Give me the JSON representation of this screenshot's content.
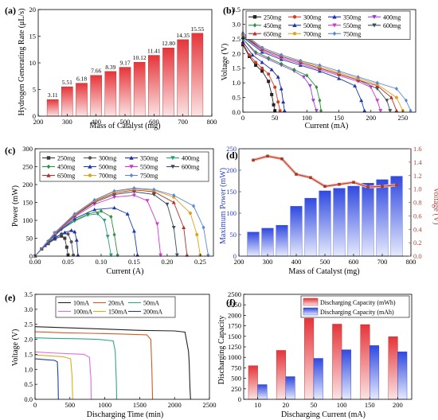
{
  "panels": [
    {
      "id": "a",
      "label": "(a)",
      "type": "bar",
      "xlabel": "Mass of Catalyst (mg)",
      "ylabel": "Hydrogen Generating Rate (μL/s)",
      "xlim": [
        200,
        800
      ],
      "ylim": [
        0,
        20
      ],
      "xticks": [
        200,
        300,
        400,
        500,
        600,
        700,
        800
      ],
      "yticks": [
        0,
        5,
        10,
        15,
        20
      ],
      "bar_color": "#e8474a",
      "x": [
        250,
        300,
        350,
        400,
        450,
        500,
        550,
        600,
        650,
        700,
        750
      ],
      "values": [
        3.11,
        5.51,
        6.18,
        7.66,
        8.39,
        9.17,
        10.12,
        11.41,
        12.8,
        14.35,
        15.55
      ],
      "value_labels": [
        "3.11",
        "5.51",
        "6.18",
        "7.66",
        "8.39",
        "9.17",
        "10.12",
        "11.41",
        "12.80",
        "14.35",
        "15.55"
      ]
    },
    {
      "id": "b",
      "label": "(b)",
      "type": "line",
      "xlabel": "Current (mA)",
      "ylabel": "Voltage (V)",
      "xlim": [
        0,
        270
      ],
      "ylim": [
        0,
        3.5
      ],
      "xticks": [
        0,
        50,
        100,
        150,
        200,
        250
      ],
      "yticks": [
        0.0,
        0.5,
        1.0,
        1.5,
        2.0,
        2.5,
        3.0,
        3.5
      ],
      "ytick_labels": [
        "0.0",
        "0.5",
        "1.0",
        "1.5",
        "2.0",
        "2.5",
        "3.0",
        "3.5"
      ],
      "legend": "top",
      "legend_cols": 4,
      "series": [
        {
          "name": "250mg",
          "color": "#222222",
          "marker": "square",
          "x": [
            0,
            10,
            20,
            30,
            40,
            45,
            48,
            50
          ],
          "y": [
            2.3,
            1.9,
            1.6,
            1.4,
            1.05,
            0.6,
            0.25,
            0.05
          ]
        },
        {
          "name": "300mg",
          "color": "#d43a24",
          "marker": "circle",
          "x": [
            0,
            10,
            20,
            30,
            40,
            50,
            55,
            58
          ],
          "y": [
            2.35,
            1.95,
            1.7,
            1.5,
            1.3,
            0.85,
            0.35,
            0.05
          ]
        },
        {
          "name": "350mg",
          "color": "#1f2fa6",
          "marker": "triangle",
          "x": [
            0,
            15,
            30,
            45,
            55,
            60,
            63,
            65
          ],
          "y": [
            2.4,
            1.95,
            1.7,
            1.45,
            1.2,
            0.8,
            0.35,
            0.05
          ]
        },
        {
          "name": "400mg",
          "color": "#9b3fd6",
          "marker": "tridown",
          "x": [
            0,
            20,
            40,
            60,
            80,
            95,
            105,
            110,
            115
          ],
          "y": [
            2.5,
            2.0,
            1.8,
            1.6,
            1.4,
            1.2,
            0.9,
            0.4,
            0.05
          ]
        },
        {
          "name": "450mg",
          "color": "#2e8f3c",
          "marker": "diamond",
          "x": [
            0,
            20,
            40,
            60,
            80,
            100,
            115,
            120,
            122
          ],
          "y": [
            2.5,
            2.05,
            1.85,
            1.65,
            1.45,
            1.25,
            0.85,
            0.4,
            0.05
          ]
        },
        {
          "name": "500mg",
          "color": "#1c3da8",
          "marker": "triangle",
          "x": [
            0,
            30,
            60,
            90,
            120,
            150,
            175,
            185,
            190
          ],
          "y": [
            2.55,
            2.05,
            1.8,
            1.6,
            1.4,
            1.15,
            0.9,
            0.4,
            0.05
          ]
        },
        {
          "name": "550mg",
          "color": "#c93bd1",
          "marker": "tridown",
          "x": [
            0,
            30,
            60,
            90,
            120,
            150,
            180,
            200,
            210,
            215
          ],
          "y": [
            2.6,
            2.1,
            1.85,
            1.65,
            1.45,
            1.25,
            1.05,
            0.85,
            0.4,
            0.05
          ]
        },
        {
          "name": "600mg",
          "color": "#3a4f5a",
          "marker": "tridown",
          "x": [
            0,
            30,
            60,
            90,
            120,
            150,
            180,
            210,
            225,
            230
          ],
          "y": [
            2.6,
            2.15,
            1.9,
            1.7,
            1.5,
            1.3,
            1.1,
            0.8,
            0.4,
            0.05
          ]
        },
        {
          "name": "650mg",
          "color": "#b3322e",
          "marker": "triangle",
          "x": [
            0,
            30,
            60,
            90,
            120,
            150,
            180,
            210,
            232,
            240
          ],
          "y": [
            2.65,
            2.15,
            1.9,
            1.7,
            1.5,
            1.3,
            1.1,
            0.9,
            0.5,
            0.05
          ]
        },
        {
          "name": "700mg",
          "color": "#e0a31c",
          "marker": "circle",
          "x": [
            0,
            30,
            60,
            90,
            120,
            150,
            180,
            210,
            240,
            250
          ],
          "y": [
            2.65,
            2.2,
            1.95,
            1.75,
            1.55,
            1.35,
            1.15,
            0.95,
            0.5,
            0.05
          ]
        },
        {
          "name": "750mg",
          "color": "#5c86d6",
          "marker": "diamond",
          "x": [
            0,
            30,
            60,
            90,
            120,
            150,
            180,
            210,
            240,
            255,
            262
          ],
          "y": [
            2.7,
            2.2,
            1.95,
            1.75,
            1.6,
            1.4,
            1.2,
            1.0,
            0.8,
            0.4,
            0.05
          ]
        }
      ]
    },
    {
      "id": "c",
      "label": "(c)",
      "type": "line",
      "xlabel": "Current (A)",
      "ylabel": "Power (mW)",
      "xlim": [
        0,
        0.27
      ],
      "ylim": [
        0,
        300
      ],
      "xticks": [
        0,
        0.05,
        0.1,
        0.15,
        0.2,
        0.25
      ],
      "xtick_labels": [
        "0.00",
        "0.05",
        "0.10",
        "0.15",
        "0.20",
        "0.25"
      ],
      "yticks": [
        0,
        50,
        100,
        150,
        200,
        250,
        300
      ],
      "legend": "top",
      "legend_cols": 4,
      "series": [
        {
          "name": "250mg",
          "color": "#3a3a3a",
          "marker": "square",
          "x": [
            0,
            0.01,
            0.02,
            0.03,
            0.04,
            0.045,
            0.048,
            0.05
          ],
          "y": [
            0,
            20,
            35,
            48,
            56,
            50,
            25,
            3
          ]
        },
        {
          "name": "300mg",
          "color": "#555555",
          "marker": "circle",
          "x": [
            0,
            0.01,
            0.02,
            0.03,
            0.04,
            0.05,
            0.055,
            0.058
          ],
          "y": [
            0,
            20,
            36,
            50,
            62,
            62,
            40,
            3
          ]
        },
        {
          "name": "350mg",
          "color": "#1f2fa6",
          "marker": "triangle",
          "x": [
            0,
            0.015,
            0.03,
            0.045,
            0.055,
            0.06,
            0.063,
            0.065
          ],
          "y": [
            0,
            30,
            52,
            66,
            72,
            68,
            45,
            3
          ]
        },
        {
          "name": "400mg",
          "color": "#2a9d7a",
          "marker": "tridown",
          "x": [
            0,
            0.02,
            0.04,
            0.06,
            0.08,
            0.095,
            0.105,
            0.11,
            0.115
          ],
          "y": [
            0,
            40,
            74,
            98,
            115,
            118,
            100,
            55,
            3
          ]
        },
        {
          "name": "450mg",
          "color": "#2e8f3c",
          "marker": "diamond",
          "x": [
            0,
            0.02,
            0.04,
            0.06,
            0.08,
            0.1,
            0.115,
            0.12,
            0.125
          ],
          "y": [
            0,
            42,
            76,
            100,
            118,
            126,
            110,
            60,
            3
          ]
        },
        {
          "name": "500mg",
          "color": "#1c3da8",
          "marker": "triangle",
          "x": [
            0,
            0.03,
            0.06,
            0.09,
            0.12,
            0.14,
            0.15,
            0.155
          ],
          "y": [
            0,
            60,
            105,
            130,
            135,
            118,
            70,
            3
          ]
        },
        {
          "name": "550mg",
          "color": "#c93bd1",
          "marker": "tridown",
          "x": [
            0,
            0.03,
            0.06,
            0.09,
            0.12,
            0.15,
            0.17,
            0.185,
            0.19
          ],
          "y": [
            0,
            62,
            110,
            145,
            165,
            170,
            155,
            90,
            3
          ]
        },
        {
          "name": "600mg",
          "color": "#3a4f5a",
          "marker": "tridown",
          "x": [
            0,
            0.03,
            0.06,
            0.09,
            0.12,
            0.15,
            0.18,
            0.2,
            0.21,
            0.215
          ],
          "y": [
            0,
            64,
            113,
            150,
            172,
            180,
            172,
            145,
            80,
            3
          ]
        },
        {
          "name": "650mg",
          "color": "#b3322e",
          "marker": "triangle",
          "x": [
            0,
            0.03,
            0.06,
            0.09,
            0.12,
            0.15,
            0.18,
            0.21,
            0.225,
            0.23
          ],
          "y": [
            0,
            64,
            114,
            153,
            176,
            185,
            180,
            150,
            80,
            3
          ]
        },
        {
          "name": "700mg",
          "color": "#e0a31c",
          "marker": "circle",
          "x": [
            0,
            0.03,
            0.06,
            0.09,
            0.12,
            0.15,
            0.18,
            0.21,
            0.235,
            0.245,
            0.25
          ],
          "y": [
            0,
            65,
            117,
            155,
            180,
            188,
            184,
            165,
            120,
            60,
            3
          ]
        },
        {
          "name": "750mg",
          "color": "#5c86d6",
          "marker": "diamond",
          "x": [
            0,
            0.03,
            0.06,
            0.09,
            0.12,
            0.15,
            0.18,
            0.21,
            0.24,
            0.255,
            0.262
          ],
          "y": [
            0,
            66,
            118,
            157,
            182,
            190,
            186,
            170,
            140,
            80,
            3
          ]
        }
      ]
    },
    {
      "id": "d",
      "label": "(d)",
      "type": "bar+line",
      "xlabel": "Mass of Catalyst (mg)",
      "ylabel": "Maximum Power (mW)",
      "y2label": "Voltage (V)",
      "xlim": [
        200,
        800
      ],
      "ylim": [
        0,
        250
      ],
      "y2lim": [
        0,
        1.6
      ],
      "xticks": [
        200,
        300,
        400,
        500,
        600,
        700,
        800
      ],
      "yticks": [
        0,
        50,
        100,
        150,
        200,
        250
      ],
      "y2ticks": [
        0.0,
        0.2,
        0.4,
        0.6,
        0.8,
        1.0,
        1.2,
        1.4,
        1.6
      ],
      "y2tick_labels": [
        "0.0",
        "0.2",
        "0.4",
        "0.6",
        "0.8",
        "1.0",
        "1.2",
        "1.4",
        "1.6"
      ],
      "bar_color": "#3f5be0",
      "line_color": "#a83a2a",
      "label_color": "#2a3fc0",
      "label2_color": "#b0463a",
      "x": [
        250,
        300,
        350,
        400,
        450,
        500,
        550,
        600,
        650,
        700,
        750
      ],
      "values": [
        56,
        65,
        72,
        116,
        135,
        152,
        158,
        163,
        170,
        178,
        186
      ],
      "voltage": [
        1.43,
        1.49,
        1.45,
        1.22,
        1.17,
        1.04,
        1.07,
        1.1,
        1.03,
        1.04,
        1.06
      ]
    },
    {
      "id": "e",
      "label": "(e)",
      "type": "line",
      "xlabel": "Discharging Time (min)",
      "ylabel": "Voltage (V)",
      "xlim": [
        0,
        2500
      ],
      "ylim": [
        0,
        3.5
      ],
      "xticks": [
        0,
        500,
        1000,
        1500,
        2000,
        2500
      ],
      "yticks": [
        0.0,
        0.5,
        1.0,
        1.5,
        2.0,
        2.5,
        3.0,
        3.5
      ],
      "ytick_labels": [
        "0.0",
        "0.5",
        "1.0",
        "1.5",
        "2.0",
        "2.5",
        "3.0",
        "3.5"
      ],
      "legend": "top",
      "legend_cols": 3,
      "series": [
        {
          "name": "10mA",
          "color": "#222222",
          "x": [
            0,
            500,
            1000,
            1500,
            2000,
            2150,
            2200,
            2210,
            2220,
            2230
          ],
          "y": [
            2.42,
            2.38,
            2.34,
            2.3,
            2.28,
            2.24,
            1.6,
            1.2,
            0.4,
            0.0
          ]
        },
        {
          "name": "20mA",
          "color": "#d45a24",
          "x": [
            0,
            400,
            800,
            1200,
            1600,
            1660,
            1675,
            1685
          ],
          "y": [
            2.25,
            2.22,
            2.2,
            2.18,
            2.15,
            2.0,
            1.0,
            0.0
          ]
        },
        {
          "name": "50mA",
          "color": "#2aa88e",
          "x": [
            0,
            300,
            600,
            900,
            1120,
            1150,
            1165,
            1170
          ],
          "y": [
            2.05,
            2.03,
            2.02,
            2.0,
            1.95,
            1.6,
            0.6,
            0.0
          ]
        },
        {
          "name": "100mA",
          "color": "#e36ae8",
          "x": [
            0,
            200,
            500,
            700,
            780,
            800,
            805
          ],
          "y": [
            1.58,
            1.55,
            1.52,
            1.5,
            1.4,
            0.7,
            0.0
          ]
        },
        {
          "name": "150mA",
          "color": "#d9b01c",
          "x": [
            0,
            200,
            400,
            510,
            530,
            540
          ],
          "y": [
            1.48,
            1.45,
            1.42,
            1.35,
            0.8,
            0.0
          ]
        },
        {
          "name": "200mA",
          "color": "#1c3da8",
          "x": [
            0,
            150,
            280,
            320,
            330,
            335
          ],
          "y": [
            1.35,
            1.32,
            1.3,
            1.25,
            0.7,
            0.0
          ]
        }
      ]
    },
    {
      "id": "f",
      "label": "(f)",
      "type": "bar",
      "xlabel": "Discharging Current (mA)",
      "ylabel": "Discharging Capacity",
      "ylim": [
        0,
        2500
      ],
      "yticks": [
        0,
        250,
        500,
        750,
        1000,
        1250,
        1500,
        1750,
        2000,
        2250,
        2500
      ],
      "categories": [
        "10",
        "20",
        "50",
        "100",
        "150",
        "200"
      ],
      "legend": "top-right",
      "series": [
        {
          "name": "Discharging Capacity (mWh)",
          "color": "#e8474a",
          "values": [
            800,
            1165,
            1930,
            1790,
            1780,
            1490
          ]
        },
        {
          "name": "Discharging Capacity (mAh)",
          "color": "#3f5be0",
          "values": [
            350,
            540,
            975,
            1180,
            1280,
            1130
          ]
        }
      ]
    }
  ]
}
